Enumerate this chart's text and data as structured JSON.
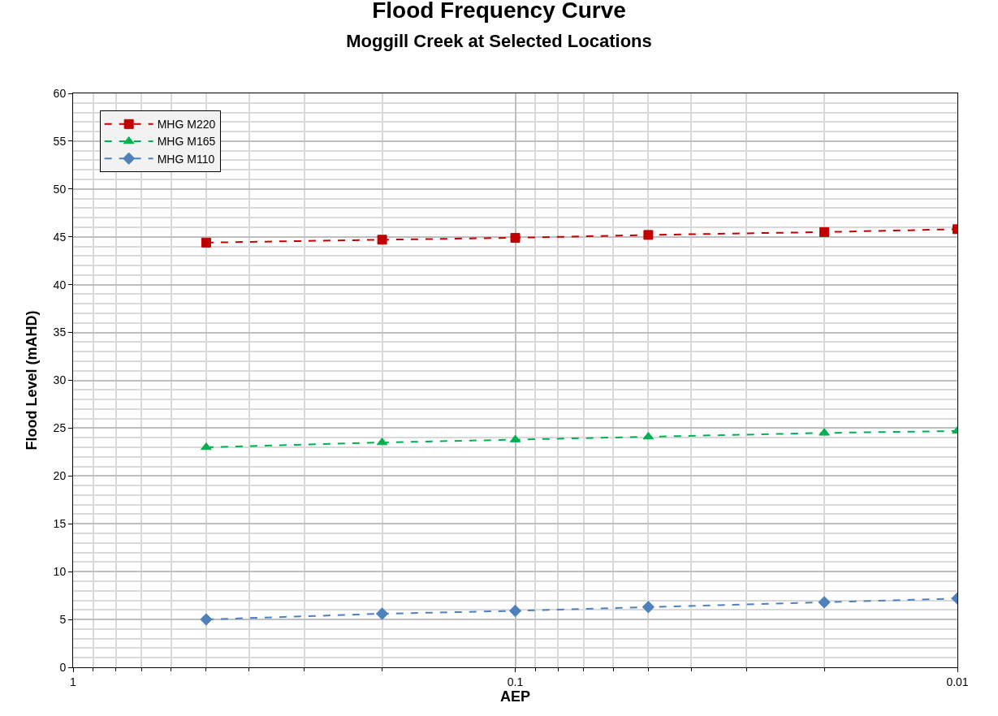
{
  "chart_data": {
    "type": "line",
    "title": "Flood Frequency Curve",
    "subtitle": "Moggill Creek at Selected Locations",
    "xlabel": "AEP",
    "ylabel": "Flood Level (mAHD)",
    "x": [
      0.5,
      0.2,
      0.1,
      0.05,
      0.02,
      0.01
    ],
    "series": [
      {
        "name": "MHG M220",
        "color": "#c00000",
        "marker": "square",
        "values": [
          44.4,
          44.7,
          44.9,
          45.2,
          45.5,
          45.8
        ]
      },
      {
        "name": "MHG M165",
        "color": "#00b050",
        "marker": "triangle",
        "values": [
          23.0,
          23.5,
          23.8,
          24.1,
          24.5,
          24.7
        ]
      },
      {
        "name": "MHG M110",
        "color": "#4f81bd",
        "marker": "diamond",
        "values": [
          5.0,
          5.6,
          5.9,
          6.3,
          6.8,
          7.2
        ]
      }
    ],
    "log": "x",
    "xlim": [
      1,
      0.01
    ],
    "xticks": [
      1,
      0.1,
      0.01
    ],
    "ylim": [
      0,
      60
    ],
    "yticks": [
      0,
      5,
      10,
      15,
      20,
      25,
      30,
      35,
      40,
      45,
      50,
      55,
      60
    ],
    "grid": true,
    "legend": "top left",
    "line_style": "dashed"
  }
}
